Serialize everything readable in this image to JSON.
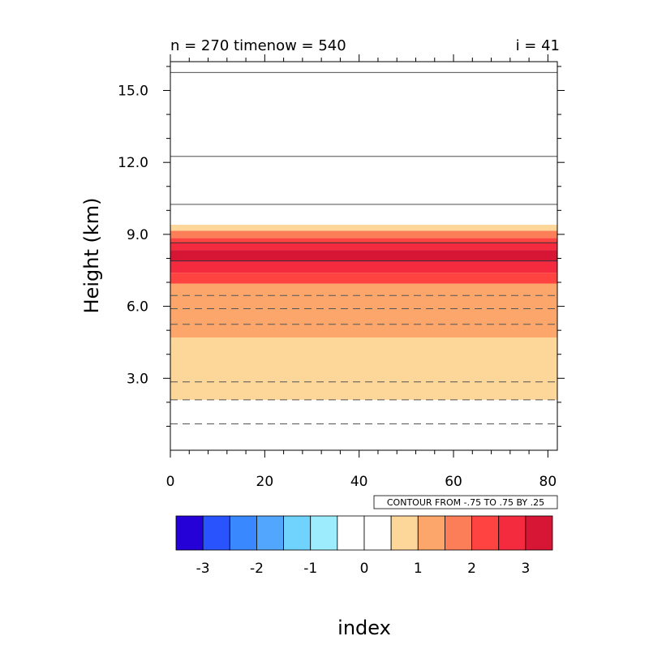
{
  "header": {
    "left_label": "n = 270 timenow = 540",
    "right_label": "i = 41"
  },
  "info_label": "CONTOUR FROM -.75 TO .75 BY .25",
  "chart_data": {
    "type": "heatmap",
    "title": "",
    "xlabel": "index",
    "ylabel": "Height (km)",
    "xlim": [
      0,
      82
    ],
    "ylim": [
      0,
      16.2
    ],
    "x_ticks": [
      {
        "value": 0,
        "label": "0"
      },
      {
        "value": 20,
        "label": "20"
      },
      {
        "value": 40,
        "label": "40"
      },
      {
        "value": 60,
        "label": "60"
      },
      {
        "value": 80,
        "label": "80"
      }
    ],
    "y_ticks": [
      {
        "value": 3,
        "label": "3.0"
      },
      {
        "value": 6,
        "label": "6.0"
      },
      {
        "value": 9,
        "label": "9.0"
      },
      {
        "value": 12,
        "label": "12.0"
      },
      {
        "value": 15,
        "label": "15.0"
      }
    ],
    "filled_bands": [
      {
        "y0": 2.1,
        "y1": 4.7,
        "color": "#fdd69a"
      },
      {
        "y0": 4.7,
        "y1": 6.95,
        "color": "#fca66b"
      },
      {
        "y0": 6.95,
        "y1": 7.4,
        "color": "#fe4341"
      },
      {
        "y0": 7.4,
        "y1": 7.85,
        "color": "#f42a3e"
      },
      {
        "y0": 7.85,
        "y1": 8.35,
        "color": "#d71635"
      },
      {
        "y0": 8.35,
        "y1": 8.65,
        "color": "#f42a3e"
      },
      {
        "y0": 8.65,
        "y1": 8.85,
        "color": "#fe4341"
      },
      {
        "y0": 8.85,
        "y1": 9.15,
        "color": "#fc7e58"
      },
      {
        "y0": 9.15,
        "y1": 9.4,
        "color": "#fdd69a"
      }
    ],
    "contour_lines": [
      {
        "y": 1.1,
        "dashed": true
      },
      {
        "y": 2.1,
        "dashed": true
      },
      {
        "y": 2.85,
        "dashed": true
      },
      {
        "y": 5.25,
        "dashed": true
      },
      {
        "y": 5.9,
        "dashed": true
      },
      {
        "y": 6.45,
        "dashed": true
      },
      {
        "y": 7.9,
        "dashed": false
      },
      {
        "y": 8.65,
        "dashed": false
      },
      {
        "y": 10.25,
        "dashed": false
      },
      {
        "y": 12.25,
        "dashed": false
      },
      {
        "y": 15.75,
        "dashed": false
      }
    ],
    "colorbar": {
      "colors": [
        "#2500d7",
        "#2853fd",
        "#3a88fe",
        "#53a6fe",
        "#6fd3fe",
        "#9cecfe",
        "#ffffff",
        "#ffffff",
        "#fdd69a",
        "#fca66b",
        "#fc7e58",
        "#fe4341",
        "#f42a3e",
        "#d71635"
      ],
      "labels": [
        "-3",
        "-2",
        "-1",
        "0",
        "1",
        "2",
        "3"
      ]
    }
  }
}
